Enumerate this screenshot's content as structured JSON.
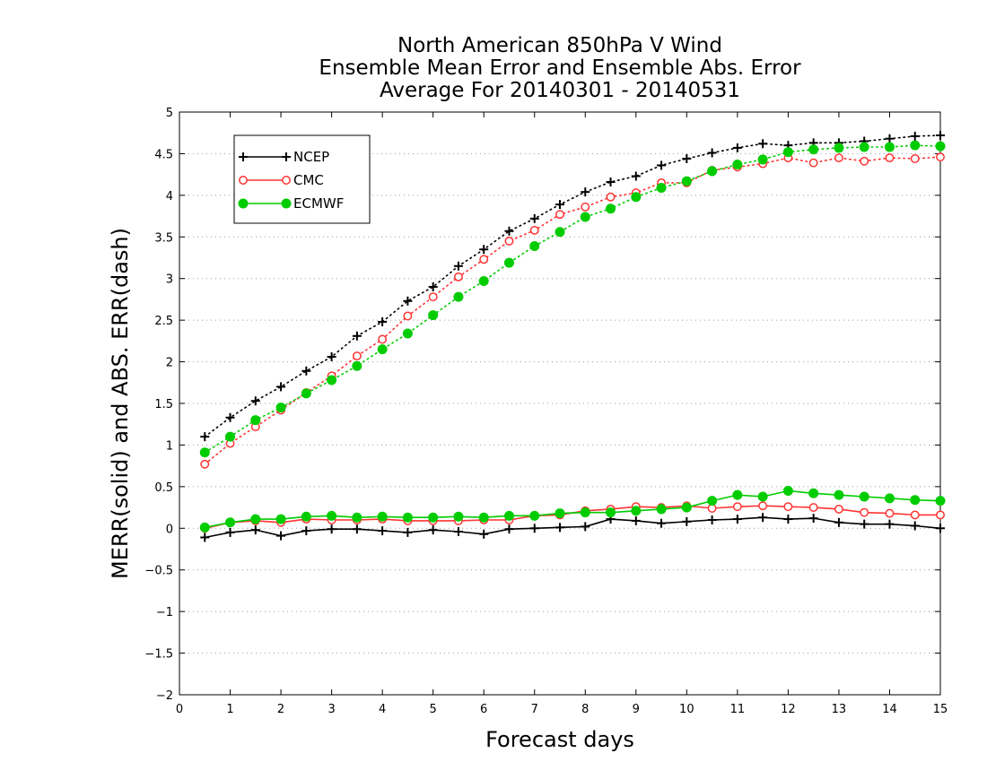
{
  "chart_data": {
    "type": "line",
    "title_lines": [
      "North American 850hPa V Wind",
      "Ensemble Mean Error and Ensemble Abs. Error",
      "Average For 20140301 - 20140531"
    ],
    "xlabel": "Forecast days",
    "ylabel": "MERR(solid) and ABS. ERR(dash)",
    "xlim": [
      0,
      15
    ],
    "ylim": [
      -2,
      5
    ],
    "x_ticks": [
      "0",
      "1",
      "2",
      "3",
      "4",
      "5",
      "6",
      "7",
      "8",
      "9",
      "10",
      "11",
      "12",
      "13",
      "14",
      "15"
    ],
    "y_ticks": [
      "−2",
      "−1.5",
      "−1",
      "−0.5",
      "0",
      "0.5",
      "1",
      "1.5",
      "2",
      "2.5",
      "3",
      "3.5",
      "4",
      "4.5",
      "5"
    ],
    "grid": "horizontal dotted",
    "legend_position": "top-left",
    "x": [
      0.5,
      1,
      1.5,
      2,
      2.5,
      3,
      3.5,
      4,
      4.5,
      5,
      5.5,
      6,
      6.5,
      7,
      7.5,
      8,
      8.5,
      9,
      9.5,
      10,
      10.5,
      11,
      11.5,
      12,
      12.5,
      13,
      13.5,
      14,
      14.5,
      15
    ],
    "series": [
      {
        "name": "NCEP",
        "color": "#000000",
        "marker": "plus",
        "abs_err": [
          1.1,
          1.33,
          1.53,
          1.7,
          1.89,
          2.06,
          2.31,
          2.48,
          2.73,
          2.9,
          3.15,
          3.35,
          3.57,
          3.72,
          3.89,
          4.04,
          4.16,
          4.23,
          4.36,
          4.44,
          4.51,
          4.57,
          4.62,
          4.6,
          4.63,
          4.63,
          4.65,
          4.68,
          4.71,
          4.72
        ],
        "mean_err": [
          -0.11,
          -0.05,
          -0.02,
          -0.09,
          -0.03,
          -0.01,
          -0.01,
          -0.03,
          -0.05,
          -0.02,
          -0.04,
          -0.07,
          -0.01,
          0.0,
          0.01,
          0.02,
          0.11,
          0.09,
          0.06,
          0.08,
          0.1,
          0.11,
          0.13,
          0.11,
          0.12,
          0.07,
          0.05,
          0.05,
          0.03,
          0.0
        ]
      },
      {
        "name": "CMC",
        "color": "#ff3333",
        "marker": "open-circle",
        "abs_err": [
          0.77,
          1.02,
          1.22,
          1.42,
          1.63,
          1.83,
          2.07,
          2.27,
          2.55,
          2.78,
          3.02,
          3.23,
          3.45,
          3.58,
          3.77,
          3.86,
          3.98,
          4.03,
          4.15,
          4.15,
          4.3,
          4.34,
          4.38,
          4.45,
          4.39,
          4.45,
          4.41,
          4.45,
          4.44,
          4.46
        ],
        "mean_err": [
          0.0,
          0.07,
          0.09,
          0.07,
          0.11,
          0.1,
          0.1,
          0.11,
          0.09,
          0.09,
          0.09,
          0.1,
          0.1,
          0.15,
          0.16,
          0.21,
          0.23,
          0.26,
          0.25,
          0.27,
          0.24,
          0.26,
          0.27,
          0.26,
          0.25,
          0.23,
          0.19,
          0.18,
          0.16,
          0.16
        ]
      },
      {
        "name": "ECMWF",
        "color": "#00cc00",
        "marker": "filled-circle",
        "abs_err": [
          0.91,
          1.1,
          1.3,
          1.45,
          1.62,
          1.78,
          1.95,
          2.15,
          2.34,
          2.56,
          2.78,
          2.97,
          3.19,
          3.39,
          3.56,
          3.74,
          3.84,
          3.98,
          4.09,
          4.17,
          4.29,
          4.37,
          4.43,
          4.52,
          4.55,
          4.57,
          4.58,
          4.58,
          4.6,
          4.59
        ],
        "mean_err": [
          0.01,
          0.07,
          0.11,
          0.11,
          0.14,
          0.15,
          0.13,
          0.14,
          0.13,
          0.13,
          0.14,
          0.13,
          0.15,
          0.15,
          0.18,
          0.19,
          0.19,
          0.21,
          0.23,
          0.25,
          0.33,
          0.4,
          0.38,
          0.45,
          0.42,
          0.4,
          0.38,
          0.36,
          0.34,
          0.33
        ]
      }
    ]
  }
}
